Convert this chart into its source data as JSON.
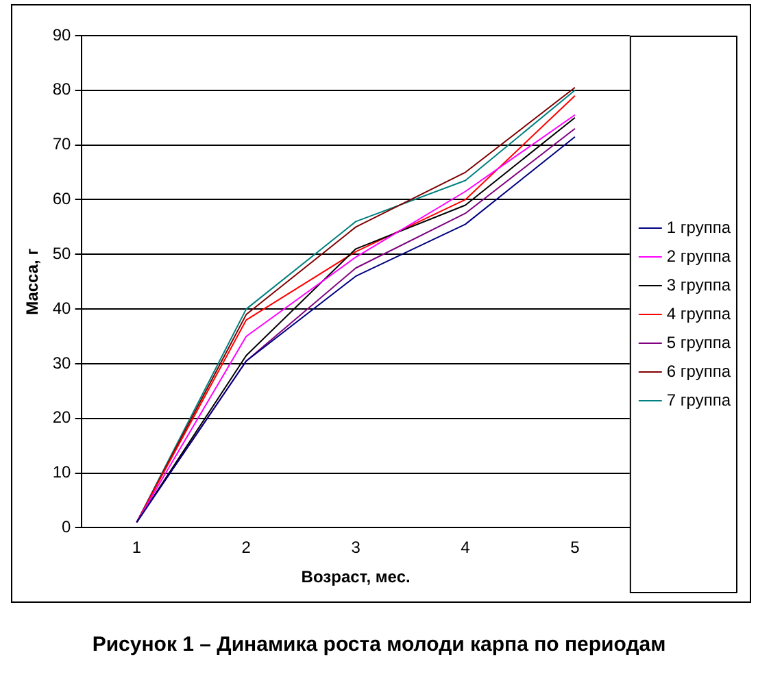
{
  "chart_data": {
    "type": "line",
    "xlabel": "Возраст, мес.",
    "ylabel": "Масса, г",
    "categories": [
      "1",
      "2",
      "3",
      "4",
      "5"
    ],
    "series": [
      {
        "name": "1 группа",
        "color": "#000080",
        "values": [
          1,
          30.5,
          46,
          55.5,
          71.5
        ]
      },
      {
        "name": "2 группа",
        "color": "#ff00ff",
        "values": [
          1,
          35,
          49.5,
          61.5,
          75.5
        ]
      },
      {
        "name": "3 группа",
        "color": "#000000",
        "values": [
          1,
          31.5,
          51,
          59,
          75
        ]
      },
      {
        "name": "4 группа",
        "color": "#ff0000",
        "values": [
          1,
          38,
          50.5,
          60,
          79
        ]
      },
      {
        "name": "5 группа",
        "color": "#800080",
        "values": [
          1,
          30.5,
          47.5,
          57.5,
          73
        ]
      },
      {
        "name": "6 группа",
        "color": "#800000",
        "values": [
          1,
          39,
          55,
          65,
          80.5
        ]
      },
      {
        "name": "7 группа",
        "color": "#008080",
        "values": [
          1,
          40,
          56,
          63.5,
          80
        ]
      }
    ],
    "ylim": [
      0,
      90
    ],
    "yticks": [
      0,
      10,
      20,
      30,
      40,
      50,
      60,
      70,
      80,
      90
    ],
    "grid": "y",
    "legend": "right",
    "marker": "none",
    "line_style": "solid",
    "annotations": [
      "Рисунок 1 – Динамика роста молоди карпа по периодам"
    ]
  }
}
